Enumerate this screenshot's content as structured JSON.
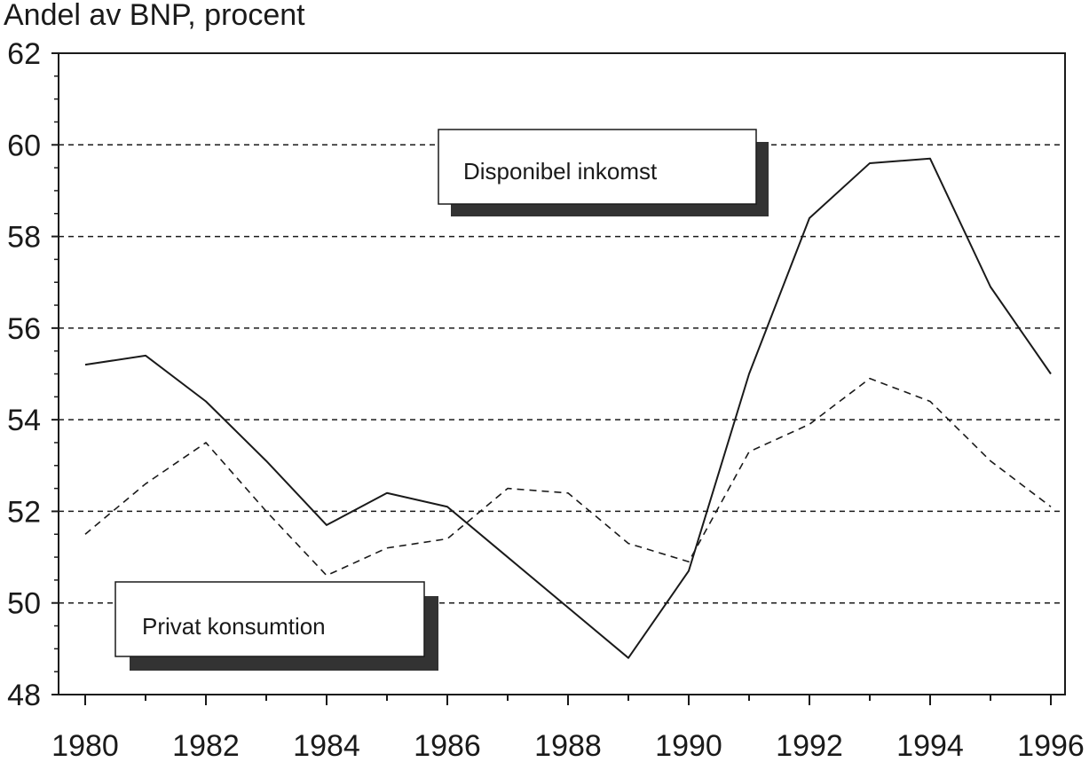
{
  "chart_data": {
    "type": "line",
    "ylabel": "Andel av BNP, procent",
    "xlabel": "",
    "x": [
      1980,
      1981,
      1982,
      1983,
      1984,
      1985,
      1986,
      1987,
      1988,
      1989,
      1990,
      1991,
      1992,
      1993,
      1994,
      1995,
      1996
    ],
    "xticks": [
      "1980",
      "1982",
      "1984",
      "1986",
      "1988",
      "1990",
      "1992",
      "1994",
      "1996"
    ],
    "yticks": [
      "62",
      "60",
      "58",
      "56",
      "54",
      "52",
      "50",
      "48"
    ],
    "ylim": [
      48,
      62
    ],
    "xlim": [
      1980,
      1996
    ],
    "grid": "horizontal dashed",
    "series": [
      {
        "name": "Disponibel inkomst",
        "style": "solid",
        "values": [
          55.2,
          55.4,
          54.4,
          53.1,
          51.7,
          52.4,
          52.1,
          51.0,
          49.9,
          48.8,
          50.7,
          55.0,
          58.4,
          59.6,
          59.7,
          56.9,
          55.0
        ]
      },
      {
        "name": "Privat konsumtion",
        "style": "dashed",
        "values": [
          51.5,
          52.6,
          53.5,
          52.0,
          50.6,
          51.2,
          51.4,
          52.5,
          52.4,
          51.3,
          50.9,
          53.3,
          53.9,
          54.9,
          54.4,
          53.1,
          52.1
        ]
      }
    ],
    "colors": {
      "line": "#1a1a1a",
      "grid": "#1a1a1a",
      "shadow": "#333333"
    }
  }
}
